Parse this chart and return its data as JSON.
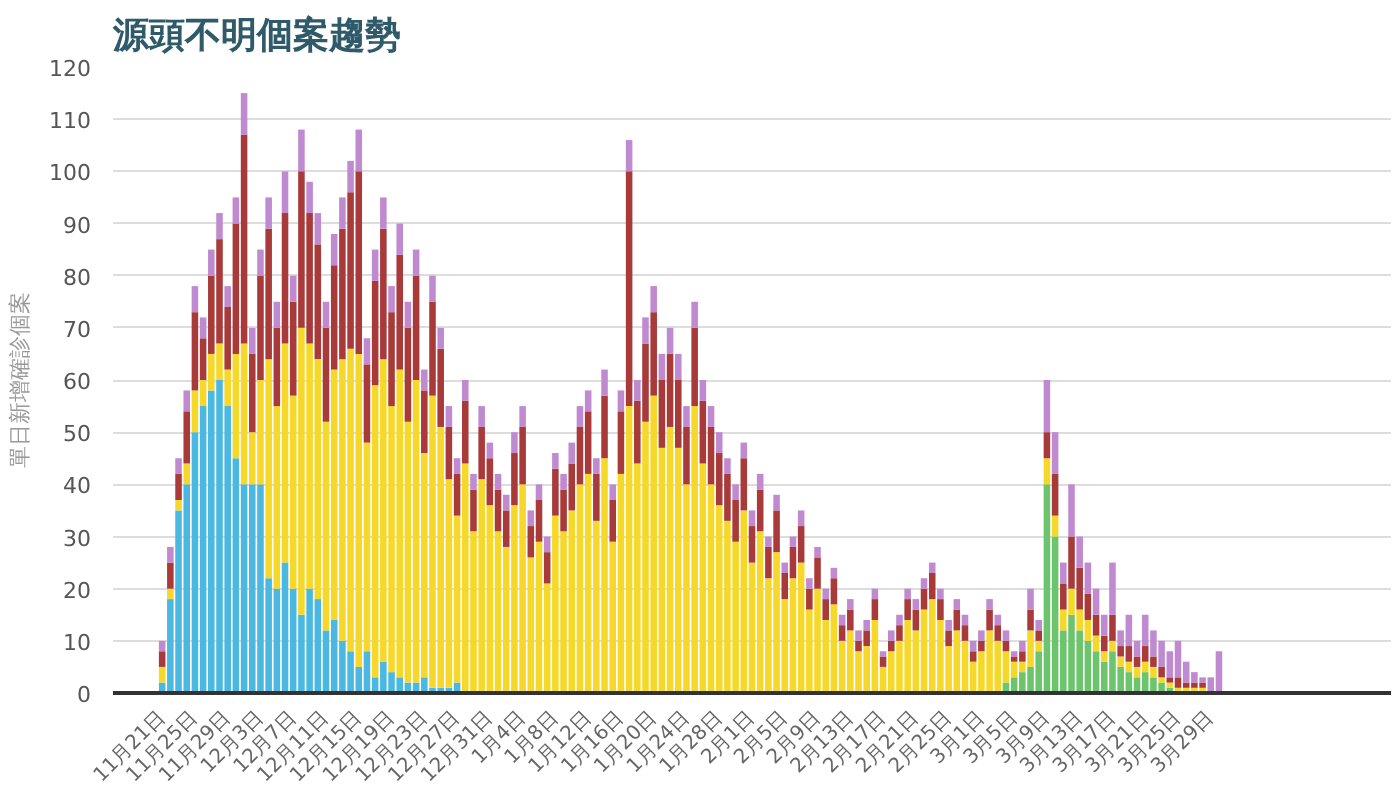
{
  "chart_data": {
    "type": "bar",
    "stacked": true,
    "title": "源頭不明個案趨勢",
    "ylabel": "單日新增確診個案",
    "categories": [
      "11月21日",
      null,
      null,
      null,
      "11月25日",
      null,
      null,
      null,
      "11月29日",
      null,
      null,
      null,
      "12月3日",
      null,
      null,
      null,
      "12月7日",
      null,
      null,
      null,
      "12月11日",
      null,
      null,
      null,
      "12月15日",
      null,
      null,
      null,
      "12月19日",
      null,
      null,
      null,
      "12月23日",
      null,
      null,
      null,
      "12月27日",
      null,
      null,
      null,
      "12月31日",
      null,
      null,
      null,
      "1月4日",
      null,
      null,
      null,
      "1月8日",
      null,
      null,
      null,
      "1月12日",
      null,
      null,
      null,
      "1月16日",
      null,
      null,
      null,
      "1月20日",
      null,
      null,
      null,
      "1月24日",
      null,
      null,
      null,
      "1月28日",
      null,
      null,
      null,
      "2月1日",
      null,
      null,
      null,
      "2月5日",
      null,
      null,
      null,
      "2月9日",
      null,
      null,
      null,
      "2月13日",
      null,
      null,
      null,
      "2月17日",
      null,
      null,
      null,
      "2月21日",
      null,
      null,
      null,
      "2月25日",
      null,
      null,
      null,
      "3月1日",
      null,
      null,
      null,
      "3月5日",
      null,
      null,
      null,
      "3月9日",
      null,
      null,
      null,
      "3月13日",
      null,
      null,
      null,
      "3月17日",
      null,
      null,
      null,
      "3月21日",
      null,
      null,
      null,
      "3月25日",
      null,
      null,
      null,
      "3月29日",
      null
    ],
    "series": [
      {
        "color": "#4ab8e0",
        "values": [
          2,
          18,
          35,
          40,
          50,
          55,
          58,
          60,
          55,
          45,
          40,
          40,
          40,
          22,
          20,
          25,
          20,
          15,
          20,
          18,
          12,
          14,
          10,
          8,
          5,
          8,
          3,
          6,
          4,
          3,
          2,
          2,
          3,
          1,
          1,
          1,
          2,
          0,
          0,
          0,
          0,
          0,
          0,
          0,
          0,
          0,
          0,
          0,
          0,
          0,
          0,
          0,
          0,
          0,
          0,
          0,
          0,
          0,
          0,
          0,
          0,
          0,
          0,
          0,
          0,
          0,
          0,
          0,
          0,
          0,
          0,
          0,
          0,
          0,
          0,
          0,
          0,
          0,
          0,
          0,
          0,
          0,
          0,
          0,
          0,
          0,
          0,
          0,
          0,
          0,
          0,
          0,
          0,
          0,
          0,
          0,
          0,
          0,
          0,
          0,
          0,
          0,
          0,
          0,
          0,
          0,
          0,
          0,
          0,
          0,
          0,
          0,
          0,
          0,
          0,
          0,
          0,
          0,
          0,
          0,
          0,
          0,
          0,
          0,
          0,
          0,
          0,
          0,
          0,
          0
        ]
      },
      {
        "color": "#6cc46c",
        "values": [
          0,
          0,
          0,
          0,
          0,
          0,
          0,
          0,
          0,
          0,
          0,
          0,
          0,
          0,
          0,
          0,
          0,
          0,
          0,
          0,
          0,
          0,
          0,
          0,
          0,
          0,
          0,
          0,
          0,
          0,
          0,
          0,
          0,
          0,
          0,
          0,
          0,
          0,
          0,
          0,
          0,
          0,
          0,
          0,
          0,
          0,
          0,
          0,
          0,
          0,
          0,
          0,
          0,
          0,
          0,
          0,
          0,
          0,
          0,
          0,
          0,
          0,
          0,
          0,
          0,
          0,
          0,
          0,
          0,
          0,
          0,
          0,
          0,
          0,
          0,
          0,
          0,
          0,
          0,
          0,
          0,
          0,
          0,
          0,
          0,
          0,
          0,
          0,
          0,
          0,
          0,
          0,
          0,
          0,
          0,
          0,
          0,
          0,
          0,
          0,
          0,
          0,
          0,
          2,
          3,
          4,
          5,
          8,
          40,
          30,
          12,
          15,
          12,
          10,
          8,
          6,
          8,
          5,
          4,
          3,
          4,
          3,
          2,
          1,
          0,
          0,
          0,
          0,
          0,
          0
        ]
      },
      {
        "color": "#f5d82a",
        "values": [
          3,
          2,
          2,
          4,
          8,
          5,
          7,
          7,
          7,
          20,
          27,
          10,
          20,
          42,
          35,
          42,
          37,
          55,
          47,
          46,
          40,
          48,
          54,
          58,
          60,
          40,
          56,
          58,
          51,
          59,
          50,
          58,
          43,
          56,
          50,
          40,
          32,
          44,
          31,
          41,
          36,
          31,
          28,
          36,
          40,
          26,
          29,
          21,
          34,
          31,
          35,
          40,
          42,
          33,
          45,
          29,
          42,
          55,
          44,
          52,
          57,
          47,
          51,
          47,
          40,
          55,
          44,
          40,
          36,
          33,
          29,
          35,
          25,
          31,
          22,
          27,
          18,
          22,
          25,
          16,
          20,
          14,
          17,
          10,
          12,
          8,
          9,
          14,
          5,
          8,
          10,
          14,
          12,
          16,
          18,
          14,
          9,
          12,
          10,
          6,
          8,
          12,
          10,
          6,
          3,
          2,
          7,
          2,
          5,
          4,
          4,
          5,
          4,
          4,
          3,
          2,
          2,
          2,
          2,
          2,
          2,
          2,
          1,
          1,
          1,
          1,
          1,
          1,
          0,
          0
        ]
      },
      {
        "color": "#a83a3a",
        "values": [
          3,
          5,
          5,
          10,
          15,
          8,
          15,
          20,
          12,
          25,
          40,
          15,
          20,
          25,
          15,
          25,
          18,
          30,
          25,
          22,
          18,
          20,
          25,
          30,
          35,
          15,
          20,
          25,
          18,
          22,
          18,
          20,
          12,
          18,
          15,
          10,
          8,
          12,
          8,
          10,
          9,
          8,
          7,
          10,
          11,
          6,
          8,
          6,
          9,
          8,
          9,
          11,
          12,
          9,
          12,
          8,
          12,
          45,
          12,
          15,
          16,
          13,
          14,
          13,
          11,
          15,
          12,
          11,
          10,
          9,
          8,
          10,
          7,
          8,
          6,
          8,
          5,
          6,
          7,
          4,
          6,
          4,
          5,
          3,
          4,
          2,
          3,
          4,
          2,
          2,
          3,
          4,
          4,
          4,
          5,
          4,
          3,
          4,
          3,
          2,
          2,
          4,
          3,
          2,
          1,
          2,
          4,
          2,
          5,
          8,
          5,
          10,
          8,
          5,
          4,
          3,
          5,
          2,
          3,
          2,
          3,
          2,
          2,
          1,
          2,
          1,
          1,
          1,
          0,
          0
        ]
      },
      {
        "color": "#c08ad0",
        "values": [
          2,
          3,
          3,
          4,
          5,
          4,
          5,
          5,
          4,
          5,
          8,
          5,
          5,
          6,
          5,
          8,
          5,
          8,
          6,
          6,
          5,
          6,
          6,
          6,
          8,
          5,
          6,
          6,
          5,
          6,
          5,
          5,
          4,
          5,
          4,
          4,
          3,
          4,
          3,
          4,
          3,
          3,
          3,
          4,
          4,
          3,
          3,
          3,
          3,
          3,
          4,
          4,
          4,
          3,
          5,
          3,
          4,
          6,
          4,
          5,
          5,
          5,
          5,
          5,
          4,
          5,
          4,
          4,
          4,
          3,
          3,
          3,
          3,
          3,
          2,
          3,
          2,
          2,
          3,
          2,
          2,
          2,
          2,
          2,
          2,
          2,
          2,
          2,
          1,
          2,
          2,
          2,
          2,
          2,
          2,
          2,
          2,
          2,
          2,
          2,
          2,
          2,
          2,
          2,
          1,
          2,
          4,
          2,
          10,
          8,
          4,
          10,
          6,
          6,
          5,
          4,
          10,
          3,
          6,
          3,
          6,
          5,
          5,
          5,
          7,
          4,
          2,
          1,
          3,
          8
        ]
      }
    ],
    "ylim": [
      0,
      120
    ],
    "yticks": [
      0,
      10,
      20,
      30,
      40,
      50,
      60,
      70,
      80,
      90,
      100,
      110,
      120
    ],
    "grid": "y"
  }
}
